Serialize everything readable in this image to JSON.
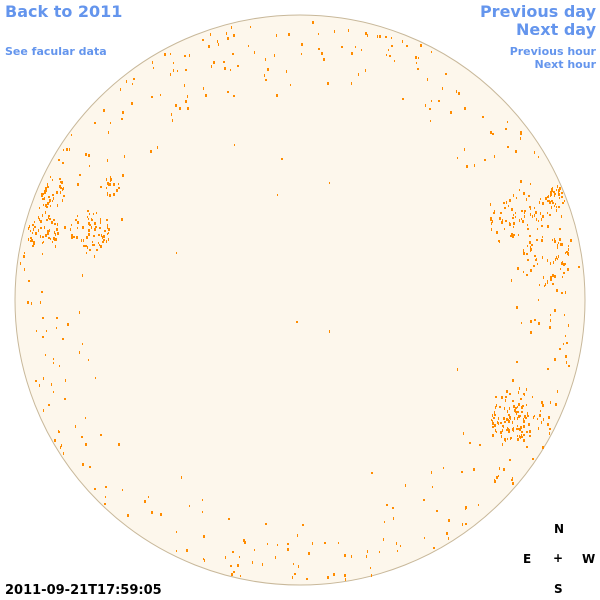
{
  "nav": {
    "back_to_year": "Back to 2011",
    "see_facular_data": "See facular data",
    "previous_day": "Previous day",
    "next_day": "Next day",
    "previous_hour": "Previous hour",
    "next_hour": "Next hour"
  },
  "compass": {
    "north": "N",
    "south": "S",
    "east": "E",
    "west": "W",
    "center": "+"
  },
  "timestamp": "2011-09-21T17:59:05",
  "colors": {
    "link": "#6495ed",
    "disk_fill": "#fdf7ec",
    "disk_border": "#c8b89a",
    "facula": "#ff8c00"
  }
}
